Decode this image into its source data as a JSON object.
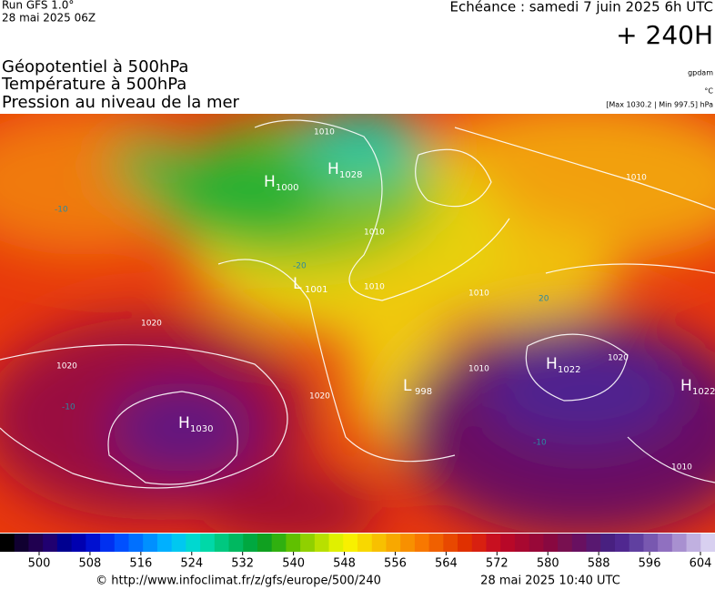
{
  "header": {
    "run": "Run GFS 1.0°",
    "date": "28 mai 2025 06Z",
    "echeance": "Echéance : samedi 7 juin 2025 6h UTC",
    "lead": "+ 240H"
  },
  "titles": [
    "Géopotentiel à 500hPa",
    "Température à 500hPa",
    "Pression au niveau de la mer"
  ],
  "units": [
    "gpdam",
    "°C",
    "[Max 1030.2 | Min 997.5] hPa"
  ],
  "centers": [
    {
      "letter": "H",
      "value": "1028"
    },
    {
      "letter": "H",
      "value": "1000"
    },
    {
      "letter": "L",
      "value": "1001"
    },
    {
      "letter": "H",
      "value": "1030"
    },
    {
      "letter": "L",
      "value": "998"
    },
    {
      "letter": "H",
      "value": "1022"
    },
    {
      "letter": "H",
      "value": "1022"
    }
  ],
  "isolines": [
    "1010",
    "1010",
    "1010",
    "1010",
    "1020",
    "1020",
    "1020",
    "1010",
    "1010",
    "-10",
    "-20",
    "-10",
    "20",
    "-10",
    "1010",
    "1020"
  ],
  "colorbar": {
    "ticks": [
      500,
      508,
      516,
      524,
      532,
      540,
      548,
      556,
      564,
      572,
      580,
      588,
      596,
      604
    ]
  },
  "footer": {
    "url": "© http://www.infoclimat.fr/z/gfs/europe/500/240",
    "date": "28 mai 2025 10:40 UTC"
  }
}
